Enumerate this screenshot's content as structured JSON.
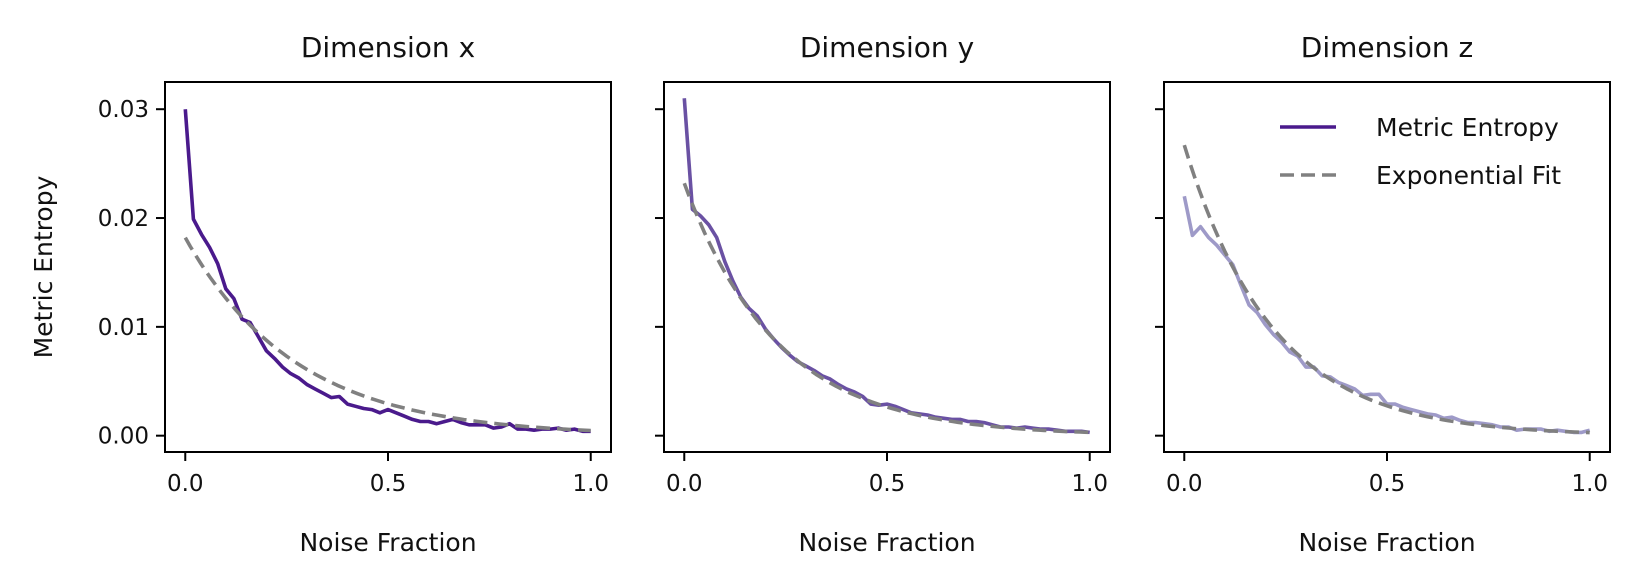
{
  "chart_data": [
    {
      "type": "line",
      "title": "Dimension x",
      "xlabel": "Noise Fraction",
      "ylabel": "Metric Entropy",
      "xlim": [
        -0.05,
        1.05
      ],
      "ylim": [
        -0.0015,
        0.0325
      ],
      "xticks": [
        0.0,
        0.5,
        1.0
      ],
      "xtick_labels": [
        "0.0",
        "0.5",
        "1.0"
      ],
      "yticks": [
        0.0,
        0.01,
        0.02,
        0.03
      ],
      "ytick_labels": [
        "0.00",
        "0.01",
        "0.02",
        "0.03"
      ],
      "grid": false,
      "series": [
        {
          "name": "Metric Entropy",
          "style": "solid",
          "color": "#4a1a8c",
          "x": [
            0.0,
            0.02,
            0.04,
            0.06,
            0.08,
            0.1,
            0.12,
            0.14,
            0.16,
            0.18,
            0.2,
            0.22,
            0.24,
            0.26,
            0.28,
            0.3,
            0.32,
            0.34,
            0.36,
            0.38,
            0.4,
            0.42,
            0.44,
            0.46,
            0.48,
            0.5,
            0.52,
            0.54,
            0.56,
            0.58,
            0.6,
            0.62,
            0.64,
            0.66,
            0.68,
            0.7,
            0.72,
            0.74,
            0.76,
            0.78,
            0.8,
            0.82,
            0.84,
            0.86,
            0.88,
            0.9,
            0.92,
            0.94,
            0.96,
            0.98,
            1.0
          ],
          "values": [
            0.03,
            0.0199,
            0.0185,
            0.0173,
            0.0158,
            0.0135,
            0.0126,
            0.0107,
            0.0104,
            0.0091,
            0.0078,
            0.0071,
            0.0063,
            0.0057,
            0.0053,
            0.0047,
            0.0043,
            0.0039,
            0.0035,
            0.0036,
            0.0029,
            0.0027,
            0.0025,
            0.0024,
            0.0021,
            0.0024,
            0.0021,
            0.0018,
            0.0015,
            0.0013,
            0.0013,
            0.0011,
            0.0013,
            0.0015,
            0.0012,
            0.001,
            0.001,
            0.001,
            0.0007,
            0.0008,
            0.0011,
            0.0006,
            0.0006,
            0.0005,
            0.0006,
            0.0006,
            0.0007,
            0.0005,
            0.0006,
            0.0004,
            0.0004
          ]
        },
        {
          "name": "Exponential Fit",
          "style": "dashed",
          "color": "#808080",
          "function": "exponential",
          "a": 0.0182,
          "b": 3.65
        }
      ]
    },
    {
      "type": "line",
      "title": "Dimension y",
      "xlabel": "Noise Fraction",
      "xlim": [
        -0.05,
        1.05
      ],
      "ylim": [
        -0.0015,
        0.0325
      ],
      "xticks": [
        0.0,
        0.5,
        1.0
      ],
      "xtick_labels": [
        "0.0",
        "0.5",
        "1.0"
      ],
      "yticks": [
        0.0,
        0.01,
        0.02,
        0.03
      ],
      "grid": false,
      "series": [
        {
          "name": "Metric Entropy",
          "style": "solid",
          "color": "#6a51a3",
          "x": [
            0.0,
            0.02,
            0.04,
            0.06,
            0.08,
            0.1,
            0.12,
            0.14,
            0.16,
            0.18,
            0.2,
            0.22,
            0.24,
            0.26,
            0.28,
            0.3,
            0.32,
            0.34,
            0.36,
            0.38,
            0.4,
            0.42,
            0.44,
            0.46,
            0.48,
            0.5,
            0.52,
            0.54,
            0.56,
            0.58,
            0.6,
            0.62,
            0.64,
            0.66,
            0.68,
            0.7,
            0.72,
            0.74,
            0.76,
            0.78,
            0.8,
            0.82,
            0.84,
            0.86,
            0.88,
            0.9,
            0.92,
            0.94,
            0.96,
            0.98,
            1.0
          ],
          "values": [
            0.031,
            0.0208,
            0.0202,
            0.0194,
            0.0182,
            0.016,
            0.0142,
            0.0127,
            0.0117,
            0.011,
            0.0098,
            0.0089,
            0.0081,
            0.0074,
            0.0068,
            0.0064,
            0.006,
            0.0055,
            0.0052,
            0.0047,
            0.0043,
            0.004,
            0.0036,
            0.0029,
            0.0028,
            0.0029,
            0.0027,
            0.0024,
            0.0021,
            0.002,
            0.0019,
            0.0017,
            0.0016,
            0.0015,
            0.0015,
            0.0013,
            0.0013,
            0.0012,
            0.001,
            0.0008,
            0.0008,
            0.0007,
            0.0008,
            0.0007,
            0.0006,
            0.0006,
            0.0005,
            0.0004,
            0.0004,
            0.0004,
            0.0003
          ]
        },
        {
          "name": "Exponential Fit",
          "style": "dashed",
          "color": "#808080",
          "function": "exponential",
          "a": 0.0232,
          "b": 4.35
        }
      ]
    },
    {
      "type": "line",
      "title": "Dimension z",
      "xlabel": "Noise Fraction",
      "xlim": [
        -0.05,
        1.05
      ],
      "ylim": [
        -0.0015,
        0.0325
      ],
      "xticks": [
        0.0,
        0.5,
        1.0
      ],
      "xtick_labels": [
        "0.0",
        "0.5",
        "1.0"
      ],
      "yticks": [
        0.0,
        0.01,
        0.02,
        0.03
      ],
      "grid": false,
      "legend": "top-right",
      "series": [
        {
          "name": "Metric Entropy",
          "style": "solid",
          "color": "#9e9ac8",
          "x": [
            0.0,
            0.02,
            0.04,
            0.06,
            0.08,
            0.1,
            0.12,
            0.14,
            0.16,
            0.18,
            0.2,
            0.22,
            0.24,
            0.26,
            0.28,
            0.3,
            0.32,
            0.34,
            0.36,
            0.38,
            0.4,
            0.42,
            0.44,
            0.46,
            0.48,
            0.5,
            0.52,
            0.54,
            0.56,
            0.58,
            0.6,
            0.62,
            0.64,
            0.66,
            0.68,
            0.7,
            0.72,
            0.74,
            0.76,
            0.78,
            0.8,
            0.82,
            0.84,
            0.86,
            0.88,
            0.9,
            0.92,
            0.94,
            0.96,
            0.98,
            1.0
          ],
          "values": [
            0.022,
            0.0184,
            0.0192,
            0.0182,
            0.0175,
            0.0166,
            0.0157,
            0.0138,
            0.012,
            0.0113,
            0.0102,
            0.0093,
            0.0086,
            0.0077,
            0.0073,
            0.0063,
            0.0063,
            0.0055,
            0.0054,
            0.0049,
            0.0046,
            0.0043,
            0.0037,
            0.0038,
            0.0038,
            0.0029,
            0.0029,
            0.0026,
            0.0024,
            0.0022,
            0.002,
            0.0019,
            0.0016,
            0.0017,
            0.0014,
            0.0012,
            0.0012,
            0.0011,
            0.001,
            0.0008,
            0.0008,
            0.0005,
            0.0006,
            0.0006,
            0.0006,
            0.0004,
            0.0005,
            0.0004,
            0.0003,
            0.0003,
            0.0005
          ]
        },
        {
          "name": "Exponential Fit",
          "style": "dashed",
          "color": "#808080",
          "function": "exponential",
          "a": 0.0267,
          "b": 4.55
        }
      ]
    }
  ]
}
